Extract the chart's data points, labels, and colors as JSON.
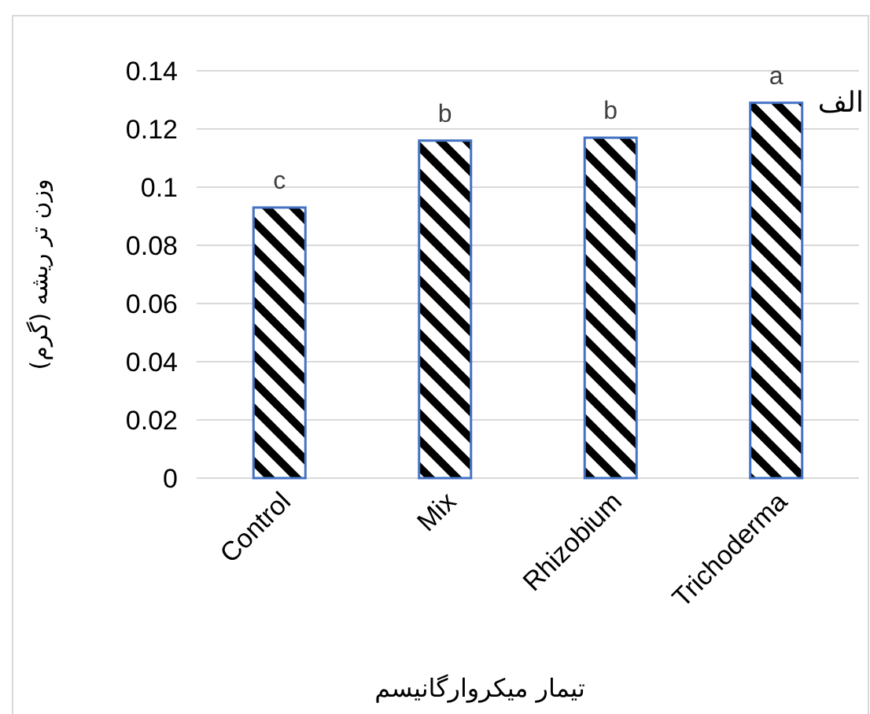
{
  "chart_data": {
    "type": "bar",
    "ylabel": "وزن تر ریشه (گرم)",
    "xlabel": "تیمار میکروارگانیسم",
    "categories": [
      "Control",
      "Mix",
      "Rhizobium",
      "Trichoderma"
    ],
    "series": [
      {
        "color": "#4472c4",
        "values": [
          0.093,
          0.116,
          0.117,
          0.129
        ]
      }
    ],
    "ylim": [
      0,
      0.14
    ],
    "yticks": [
      0,
      {
        "value": 0.02,
        "label": "0.02"
      },
      {
        "value": 0.04,
        "label": "0.04"
      },
      {
        "value": 0.06,
        "label": "0.06"
      },
      {
        "value": 0.08,
        "label": "0.08"
      },
      {
        "value": 0.1,
        "label": "0.1"
      },
      {
        "value": 0.12,
        "label": "0.12"
      },
      {
        "value": 0.14,
        "label": "0.14"
      }
    ],
    "grid": "y",
    "annotations": [
      {
        "text": "c",
        "x": "Control",
        "y": 0.093
      },
      {
        "text": "b",
        "x": "Mix",
        "y": 0.116
      },
      {
        "text": "b",
        "x": "Rhizobium",
        "y": 0.117
      },
      {
        "text": "a",
        "x": "Trichoderma",
        "y": 0.129
      },
      "الف"
    ]
  }
}
